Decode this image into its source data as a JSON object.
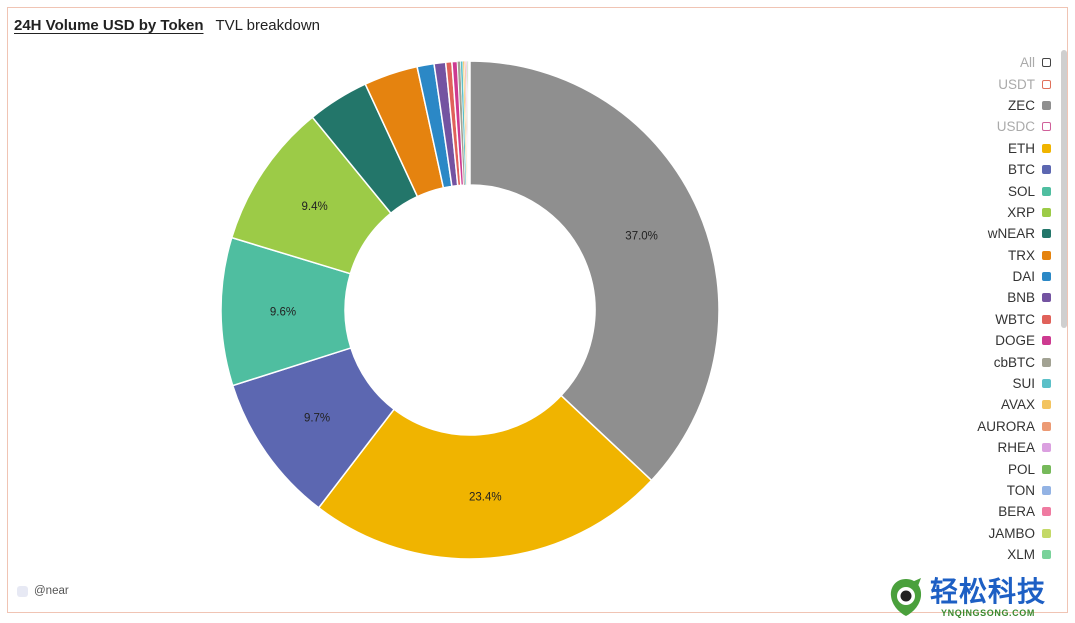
{
  "header": {
    "active_tab": "24H Volume USD by Token",
    "other_tab": "TVL breakdown"
  },
  "chart_data": {
    "type": "pie",
    "donut": true,
    "slices": [
      {
        "name": "ZEC",
        "value": 37.0,
        "color": "#8f8f8f",
        "label": "37.0%"
      },
      {
        "name": "ETH",
        "value": 23.4,
        "color": "#f0b400",
        "label": "23.4%"
      },
      {
        "name": "BTC",
        "value": 9.7,
        "color": "#5c67b1",
        "label": "9.7%"
      },
      {
        "name": "SOL",
        "value": 9.6,
        "color": "#4fbea0",
        "label": "9.6%"
      },
      {
        "name": "XRP",
        "value": 9.4,
        "color": "#9ccb47",
        "label": "9.4%"
      },
      {
        "name": "wNEAR",
        "value": 4.0,
        "color": "#23766a",
        "label": ""
      },
      {
        "name": "TRX",
        "value": 3.5,
        "color": "#e5830f",
        "label": ""
      },
      {
        "name": "DAI",
        "value": 1.1,
        "color": "#2b88c6",
        "label": ""
      },
      {
        "name": "BNB",
        "value": 0.75,
        "color": "#7453a1",
        "label": ""
      },
      {
        "name": "WBTC",
        "value": 0.4,
        "color": "#e0615a",
        "label": ""
      },
      {
        "name": "DOGE",
        "value": 0.35,
        "color": "#cd3a90",
        "label": ""
      },
      {
        "name": "cbBTC",
        "value": 0.2,
        "color": "#a2a293",
        "label": ""
      },
      {
        "name": "SUI",
        "value": 0.15,
        "color": "#5bc0c8",
        "label": ""
      },
      {
        "name": "AVAX",
        "value": 0.1,
        "color": "#f3c460",
        "label": ""
      },
      {
        "name": "AURORA",
        "value": 0.08,
        "color": "#ec9a74",
        "label": ""
      },
      {
        "name": "RHEA",
        "value": 0.07,
        "color": "#dba0e0",
        "label": ""
      },
      {
        "name": "POL",
        "value": 0.06,
        "color": "#76b95a",
        "label": ""
      },
      {
        "name": "TON",
        "value": 0.05,
        "color": "#93b3e4",
        "label": ""
      },
      {
        "name": "BERA",
        "value": 0.04,
        "color": "#ef7ba1",
        "label": ""
      },
      {
        "name": "JAMBO",
        "value": 0.03,
        "color": "#c4d967",
        "label": ""
      },
      {
        "name": "XLM",
        "value": 0.03,
        "color": "#79d29a",
        "label": ""
      }
    ]
  },
  "legend": {
    "items": [
      {
        "name": "All",
        "color": "#444444",
        "enabled": false
      },
      {
        "name": "USDT",
        "color": "#e0705a",
        "enabled": false
      },
      {
        "name": "ZEC",
        "color": "#8f8f8f",
        "enabled": true
      },
      {
        "name": "USDC",
        "color": "#d0609a",
        "enabled": false
      },
      {
        "name": "ETH",
        "color": "#f0b400",
        "enabled": true
      },
      {
        "name": "BTC",
        "color": "#5c67b1",
        "enabled": true
      },
      {
        "name": "SOL",
        "color": "#4fbea0",
        "enabled": true
      },
      {
        "name": "XRP",
        "color": "#9ccb47",
        "enabled": true
      },
      {
        "name": "wNEAR",
        "color": "#23766a",
        "enabled": true
      },
      {
        "name": "TRX",
        "color": "#e5830f",
        "enabled": true
      },
      {
        "name": "DAI",
        "color": "#2b88c6",
        "enabled": true
      },
      {
        "name": "BNB",
        "color": "#7453a1",
        "enabled": true
      },
      {
        "name": "WBTC",
        "color": "#e0615a",
        "enabled": true
      },
      {
        "name": "DOGE",
        "color": "#cd3a90",
        "enabled": true
      },
      {
        "name": "cbBTC",
        "color": "#a2a293",
        "enabled": true
      },
      {
        "name": "SUI",
        "color": "#5bc0c8",
        "enabled": true
      },
      {
        "name": "AVAX",
        "color": "#f3c460",
        "enabled": true
      },
      {
        "name": "AURORA",
        "color": "#ec9a74",
        "enabled": true
      },
      {
        "name": "RHEA",
        "color": "#dba0e0",
        "enabled": true
      },
      {
        "name": "POL",
        "color": "#76b95a",
        "enabled": true
      },
      {
        "name": "TON",
        "color": "#93b3e4",
        "enabled": true
      },
      {
        "name": "BERA",
        "color": "#ef7ba1",
        "enabled": true
      },
      {
        "name": "JAMBO",
        "color": "#c4d967",
        "enabled": true
      },
      {
        "name": "XLM",
        "color": "#79d29a",
        "enabled": true
      }
    ]
  },
  "attribution": "@near",
  "watermark": {
    "cn": "轻松科技",
    "en": "YNQINGSONG.COM"
  }
}
